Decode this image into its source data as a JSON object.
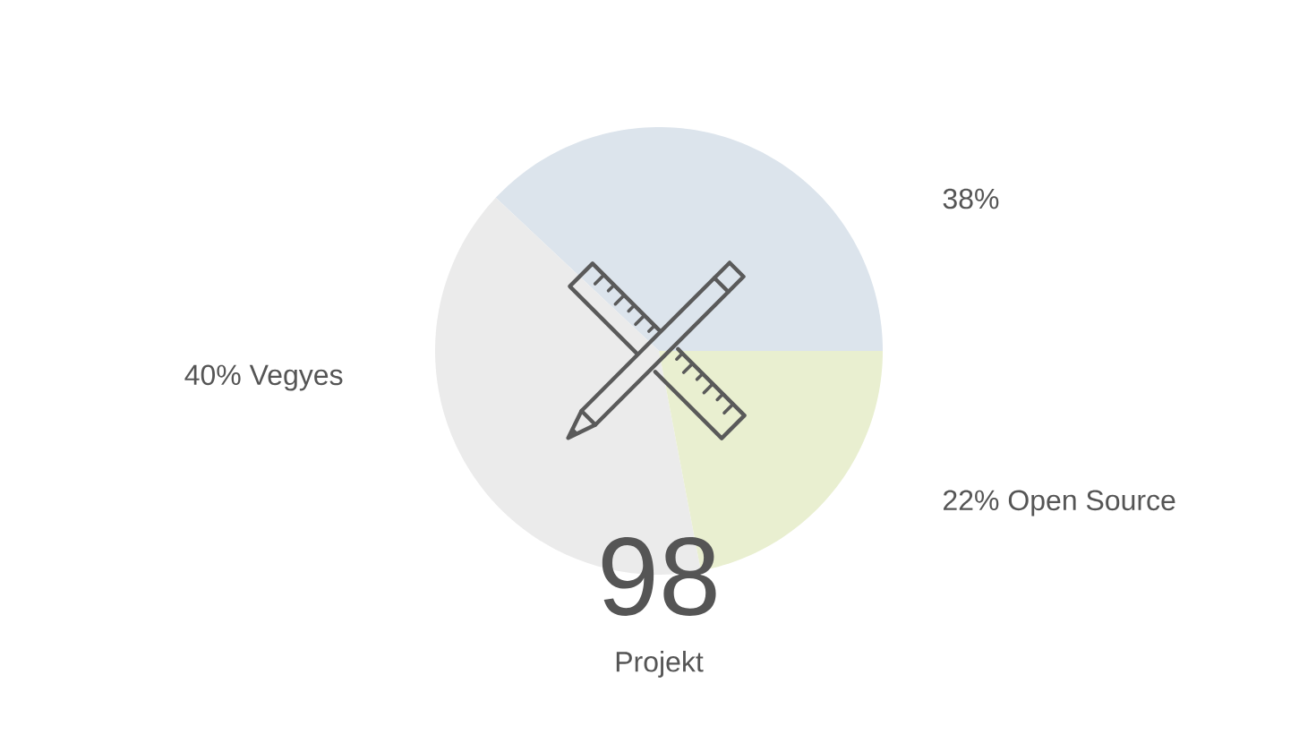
{
  "chart_data": {
    "type": "pie",
    "categories": [
      null,
      "Vegyes",
      "Open Source"
    ],
    "values": [
      38,
      40,
      22
    ],
    "value_labels": [
      "38%",
      "40%",
      "22%"
    ],
    "colors": [
      "#dce4ec",
      "#ebebeb",
      "#e9efd0"
    ],
    "annotations": [
      "98",
      "Projekt"
    ]
  }
}
